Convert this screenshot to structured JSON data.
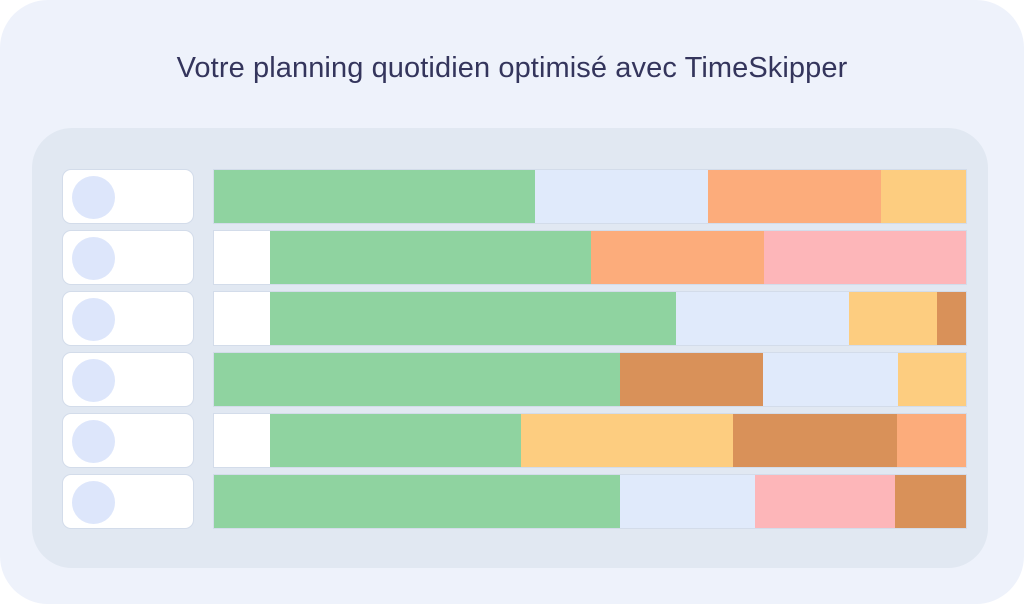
{
  "title": "Votre planning quotidien optimisé avec TimeSkipper",
  "colors": {
    "empty": "#ffffff",
    "green": "#8fd3a0",
    "light-blue": "#e0eafb",
    "orange": "#fcac7b",
    "yellow": "#fdcd80",
    "pink": "#fdb6b9",
    "brown": "#d99159"
  },
  "rows": [
    {
      "segments": [
        {
          "color": "green",
          "share": 0.427
        },
        {
          "color": "light-blue",
          "share": 0.23
        },
        {
          "color": "orange",
          "share": 0.23
        },
        {
          "color": "yellow",
          "share": 0.113
        }
      ]
    },
    {
      "segments": [
        {
          "color": "empty",
          "share": 0.075
        },
        {
          "color": "green",
          "share": 0.427
        },
        {
          "color": "orange",
          "share": 0.23
        },
        {
          "color": "pink",
          "share": 0.268
        }
      ]
    },
    {
      "segments": [
        {
          "color": "empty",
          "share": 0.075
        },
        {
          "color": "green",
          "share": 0.54
        },
        {
          "color": "light-blue",
          "share": 0.23
        },
        {
          "color": "yellow",
          "share": 0.117
        },
        {
          "color": "brown",
          "share": 0.038
        }
      ]
    },
    {
      "segments": [
        {
          "color": "green",
          "share": 0.54
        },
        {
          "color": "brown",
          "share": 0.19
        },
        {
          "color": "light-blue",
          "share": 0.18
        },
        {
          "color": "yellow",
          "share": 0.09
        }
      ]
    },
    {
      "segments": [
        {
          "color": "empty",
          "share": 0.075
        },
        {
          "color": "green",
          "share": 0.333
        },
        {
          "color": "yellow",
          "share": 0.282
        },
        {
          "color": "brown",
          "share": 0.218
        },
        {
          "color": "orange",
          "share": 0.092
        }
      ]
    },
    {
      "segments": [
        {
          "color": "green",
          "share": 0.54
        },
        {
          "color": "light-blue",
          "share": 0.18
        },
        {
          "color": "pink",
          "share": 0.185
        },
        {
          "color": "brown",
          "share": 0.095
        }
      ]
    }
  ]
}
